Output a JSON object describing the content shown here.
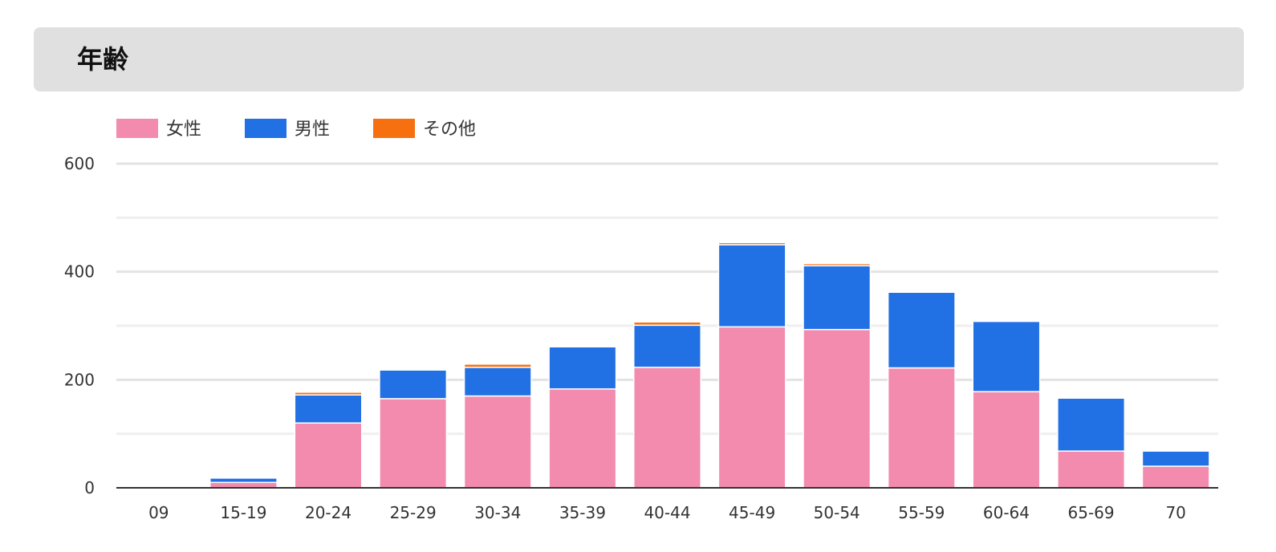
{
  "header": {
    "title": "年齢"
  },
  "chart_data": {
    "type": "bar",
    "stacked": true,
    "title": "年齢",
    "categories": [
      "09",
      "15-19",
      "20-24",
      "25-29",
      "30-34",
      "35-39",
      "40-44",
      "45-49",
      "50-54",
      "55-59",
      "60-64",
      "65-69",
      "70"
    ],
    "series": [
      {
        "name": "女性",
        "color": "#f28bad",
        "values": [
          0,
          10,
          120,
          165,
          170,
          183,
          223,
          298,
          293,
          222,
          178,
          68,
          40
        ]
      },
      {
        "name": "男性",
        "color": "#2170e4",
        "values": [
          0,
          8,
          52,
          53,
          53,
          78,
          78,
          152,
          118,
          140,
          130,
          98,
          28
        ]
      },
      {
        "name": "その他",
        "color": "#f7700f",
        "values": [
          0,
          0,
          5,
          0,
          6,
          2,
          6,
          4,
          4,
          0,
          0,
          0,
          0
        ]
      }
    ],
    "yticks": [
      0,
      200,
      400,
      600
    ],
    "ylim": [
      0,
      600
    ],
    "grid": true,
    "legend": "top-left",
    "xlabel": "",
    "ylabel": ""
  }
}
